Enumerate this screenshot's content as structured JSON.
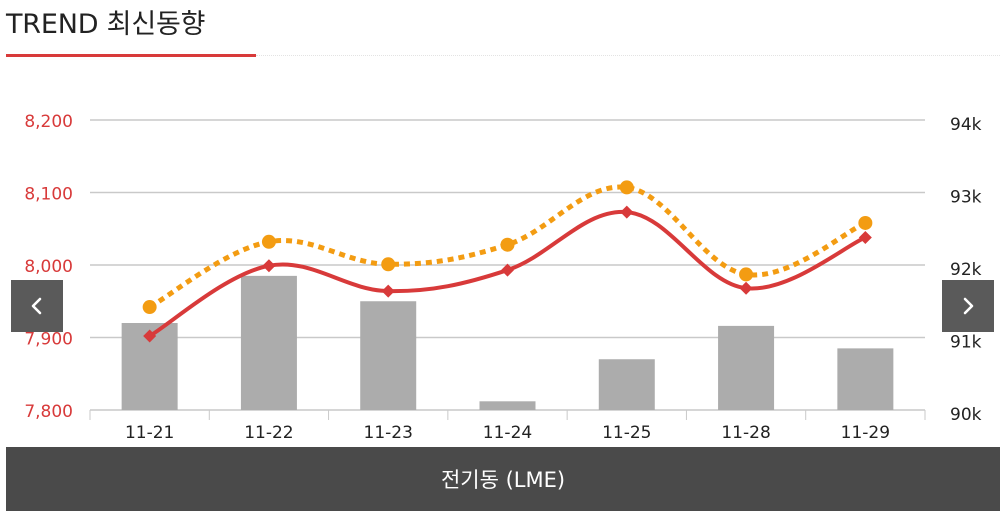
{
  "header": {
    "title": "TREND 최신동향"
  },
  "footer": {
    "label": "전기동 (LME)"
  },
  "nav": {
    "prev_icon": "chevron-left-icon",
    "next_icon": "chevron-right-icon"
  },
  "colors": {
    "left_axis_text": "#d83a3a",
    "right_axis_text": "#222222",
    "bar": "#acacac",
    "line_primary": "#d83a3a",
    "line_secondary": "#f39c12",
    "grid": "#c9c9c9"
  },
  "chart_data": {
    "type": "bar",
    "categories": [
      "11-21",
      "11-22",
      "11-23",
      "11-24",
      "11-25",
      "11-28",
      "11-29"
    ],
    "y_left": {
      "ticks": [
        "8,200",
        "8,100",
        "8,000",
        "7,900",
        "7,800"
      ],
      "range": [
        7800,
        8200
      ]
    },
    "y_right": {
      "ticks": [
        "94k",
        "93k",
        "92k",
        "91k",
        "90k"
      ],
      "range": [
        90000,
        94000
      ]
    },
    "grid": true,
    "series": [
      {
        "type": "bar",
        "axis": "right",
        "values": [
          91200,
          91850,
          91500,
          90120,
          90700,
          91160,
          90850
        ]
      },
      {
        "type": "line",
        "axis": "left",
        "style": "solid",
        "marker": "diamond",
        "values": [
          7902,
          7999,
          7964,
          7993,
          8073,
          7968,
          8038
        ]
      },
      {
        "type": "line",
        "axis": "left",
        "style": "dotted",
        "marker": "circle",
        "values": [
          7942,
          8032,
          8001,
          8028,
          8107,
          7987,
          8058
        ]
      }
    ]
  }
}
